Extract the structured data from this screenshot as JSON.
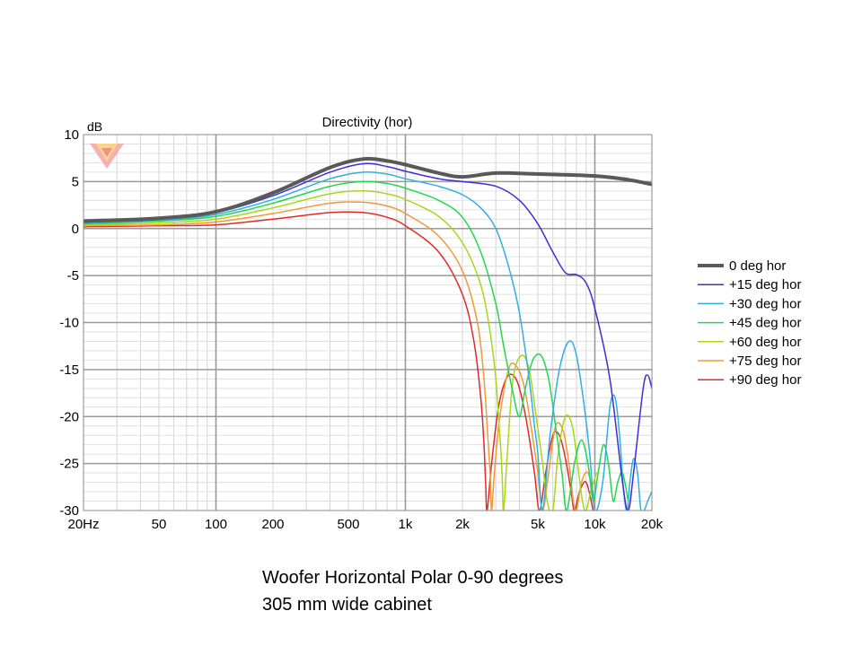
{
  "caption": {
    "line1": "Woofer  Horizontal Polar 0-90 degrees",
    "line2": "305 mm wide cabinet"
  },
  "chart_data": {
    "type": "line",
    "title": "Directivity (hor)",
    "ylabel": "dB",
    "xlabel": "",
    "x_scale": "log",
    "xlim": [
      20,
      20000
    ],
    "ylim": [
      -30,
      10
    ],
    "grid": true,
    "legend_position": "right",
    "x_ticks": [
      {
        "value": 20,
        "label": "20Hz"
      },
      {
        "value": 50,
        "label": "50"
      },
      {
        "value": 100,
        "label": "100"
      },
      {
        "value": 200,
        "label": "200"
      },
      {
        "value": 500,
        "label": "500"
      },
      {
        "value": 1000,
        "label": "1k"
      },
      {
        "value": 2000,
        "label": "2k"
      },
      {
        "value": 5000,
        "label": "5k"
      },
      {
        "value": 10000,
        "label": "10k"
      },
      {
        "value": 20000,
        "label": "20k"
      }
    ],
    "y_ticks": [
      10,
      5,
      0,
      -5,
      -10,
      -15,
      -20,
      -25,
      -30
    ],
    "series": [
      {
        "name": "0 deg hor",
        "color": "#595959",
        "width": 4,
        "points": [
          [
            20,
            0.8
          ],
          [
            50,
            1.1
          ],
          [
            100,
            1.8
          ],
          [
            200,
            3.8
          ],
          [
            400,
            6.5
          ],
          [
            600,
            7.4
          ],
          [
            800,
            7.2
          ],
          [
            1000,
            6.8
          ],
          [
            1500,
            5.9
          ],
          [
            2000,
            5.5
          ],
          [
            3000,
            5.9
          ],
          [
            5000,
            5.8
          ],
          [
            10000,
            5.6
          ],
          [
            15000,
            5.2
          ],
          [
            20000,
            4.7
          ]
        ]
      },
      {
        "name": "+15 deg hor",
        "color": "#3a2fd8",
        "width": 1.5,
        "points": [
          [
            20,
            0.7
          ],
          [
            50,
            1.0
          ],
          [
            100,
            1.7
          ],
          [
            200,
            3.5
          ],
          [
            400,
            6.0
          ],
          [
            600,
            6.9
          ],
          [
            800,
            6.6
          ],
          [
            1000,
            6.1
          ],
          [
            1500,
            5.3
          ],
          [
            2000,
            5.0
          ],
          [
            3000,
            4.5
          ],
          [
            4000,
            3.0
          ],
          [
            5000,
            0.5
          ],
          [
            6000,
            -2.5
          ],
          [
            7000,
            -4.7
          ],
          [
            8000,
            -4.9
          ],
          [
            9000,
            -5.8
          ],
          [
            10000,
            -8.5
          ],
          [
            12000,
            -16
          ],
          [
            14000,
            -27
          ],
          [
            15000,
            -30
          ],
          [
            16000,
            -26
          ],
          [
            18000,
            -17
          ],
          [
            19000,
            -15.6
          ],
          [
            20000,
            -17
          ]
        ]
      },
      {
        "name": "+30 deg hor",
        "color": "#2fb0e0",
        "width": 1.5,
        "points": [
          [
            20,
            0.6
          ],
          [
            50,
            0.9
          ],
          [
            100,
            1.5
          ],
          [
            200,
            3.1
          ],
          [
            400,
            5.3
          ],
          [
            600,
            6.0
          ],
          [
            800,
            5.8
          ],
          [
            1000,
            5.3
          ],
          [
            1500,
            4.5
          ],
          [
            2000,
            3.6
          ],
          [
            2500,
            2.2
          ],
          [
            3000,
            0
          ],
          [
            3500,
            -4
          ],
          [
            4000,
            -9
          ],
          [
            4500,
            -16
          ],
          [
            4800,
            -21
          ],
          [
            5000,
            -24
          ],
          [
            5300,
            -30
          ],
          [
            5800,
            -22
          ],
          [
            6500,
            -15
          ],
          [
            7300,
            -12
          ],
          [
            8000,
            -13.5
          ],
          [
            8800,
            -19
          ],
          [
            9400,
            -24
          ],
          [
            10000,
            -30
          ],
          [
            11000,
            -27
          ],
          [
            12000,
            -19
          ],
          [
            12800,
            -18
          ],
          [
            13500,
            -22
          ],
          [
            14200,
            -28
          ],
          [
            14800,
            -30
          ],
          [
            15300,
            -27
          ],
          [
            16000,
            -24.5
          ],
          [
            16800,
            -26
          ],
          [
            17500,
            -30
          ],
          [
            18200,
            -30
          ],
          [
            19000,
            -29
          ],
          [
            20000,
            -28
          ]
        ]
      },
      {
        "name": "+45 deg hor",
        "color": "#22d652",
        "width": 1.5,
        "points": [
          [
            20,
            0.5
          ],
          [
            50,
            0.8
          ],
          [
            100,
            1.3
          ],
          [
            200,
            2.7
          ],
          [
            400,
            4.5
          ],
          [
            600,
            5.0
          ],
          [
            800,
            4.8
          ],
          [
            1000,
            4.3
          ],
          [
            1500,
            3.0
          ],
          [
            2000,
            1.2
          ],
          [
            2500,
            -2.5
          ],
          [
            3000,
            -8
          ],
          [
            3300,
            -12.5
          ],
          [
            3700,
            -17.5
          ],
          [
            4000,
            -20
          ],
          [
            4300,
            -17
          ],
          [
            4700,
            -14
          ],
          [
            5200,
            -13.5
          ],
          [
            5700,
            -16
          ],
          [
            6200,
            -21
          ],
          [
            6700,
            -26
          ],
          [
            7100,
            -30
          ],
          [
            7800,
            -25
          ],
          [
            8500,
            -22.5
          ],
          [
            9200,
            -25
          ],
          [
            9800,
            -29
          ],
          [
            10400,
            -26
          ],
          [
            11100,
            -23
          ],
          [
            11800,
            -25
          ],
          [
            12500,
            -29
          ],
          [
            13200,
            -27
          ],
          [
            14000,
            -26
          ],
          [
            15000,
            -29
          ]
        ]
      },
      {
        "name": "+60 deg hor",
        "color": "#a8d816",
        "width": 1.5,
        "points": [
          [
            20,
            0.4
          ],
          [
            50,
            0.6
          ],
          [
            100,
            1.0
          ],
          [
            200,
            2.2
          ],
          [
            400,
            3.7
          ],
          [
            600,
            4.0
          ],
          [
            800,
            3.7
          ],
          [
            1000,
            3.1
          ],
          [
            1500,
            1.3
          ],
          [
            2000,
            -1.5
          ],
          [
            2500,
            -6
          ],
          [
            2800,
            -11
          ],
          [
            3000,
            -16
          ],
          [
            3100,
            -20
          ],
          [
            3200,
            -24
          ],
          [
            3250,
            -27
          ],
          [
            3300,
            -30
          ],
          [
            3450,
            -24
          ],
          [
            3700,
            -16
          ],
          [
            4100,
            -13.5
          ],
          [
            4500,
            -15
          ],
          [
            4900,
            -20
          ],
          [
            5300,
            -25
          ],
          [
            5600,
            -29
          ],
          [
            6000,
            -30
          ],
          [
            6400,
            -24
          ],
          [
            7000,
            -20
          ],
          [
            7600,
            -21
          ],
          [
            8100,
            -25
          ],
          [
            8600,
            -29
          ],
          [
            9000,
            -30
          ],
          [
            9500,
            -28
          ],
          [
            10200,
            -26
          ]
        ]
      },
      {
        "name": "+75 deg hor",
        "color": "#f09a38",
        "width": 1.5,
        "points": [
          [
            20,
            0.3
          ],
          [
            50,
            0.4
          ],
          [
            100,
            0.7
          ],
          [
            200,
            1.6
          ],
          [
            400,
            2.7
          ],
          [
            600,
            2.8
          ],
          [
            800,
            2.4
          ],
          [
            1000,
            1.6
          ],
          [
            1500,
            -0.8
          ],
          [
            2000,
            -4.5
          ],
          [
            2400,
            -10
          ],
          [
            2600,
            -16
          ],
          [
            2700,
            -21
          ],
          [
            2800,
            -26
          ],
          [
            2850,
            -30
          ],
          [
            2950,
            -26
          ],
          [
            3150,
            -20
          ],
          [
            3500,
            -15
          ],
          [
            3800,
            -14.5
          ],
          [
            4200,
            -16.5
          ],
          [
            4600,
            -21
          ],
          [
            5000,
            -26
          ],
          [
            5300,
            -30
          ],
          [
            5700,
            -26
          ],
          [
            6200,
            -21
          ],
          [
            6800,
            -21.5
          ],
          [
            7300,
            -25
          ],
          [
            7700,
            -29
          ],
          [
            8000,
            -30
          ],
          [
            8500,
            -27
          ],
          [
            9200,
            -26
          ],
          [
            10000,
            -29
          ]
        ]
      },
      {
        "name": "+90 deg hor",
        "color": "#e02a2a",
        "width": 1.5,
        "points": [
          [
            20,
            0.2
          ],
          [
            50,
            0.3
          ],
          [
            100,
            0.4
          ],
          [
            200,
            1.0
          ],
          [
            400,
            1.7
          ],
          [
            600,
            1.7
          ],
          [
            800,
            1.2
          ],
          [
            1000,
            0.3
          ],
          [
            1500,
            -2.5
          ],
          [
            2000,
            -7
          ],
          [
            2300,
            -12
          ],
          [
            2500,
            -18
          ],
          [
            2600,
            -23
          ],
          [
            2650,
            -27
          ],
          [
            2700,
            -30
          ],
          [
            2850,
            -25
          ],
          [
            3100,
            -19
          ],
          [
            3400,
            -16
          ],
          [
            3700,
            -15.6
          ],
          [
            4000,
            -17
          ],
          [
            4400,
            -21
          ],
          [
            4800,
            -26
          ],
          [
            5100,
            -30
          ],
          [
            5500,
            -26
          ],
          [
            6000,
            -22
          ],
          [
            6500,
            -22
          ],
          [
            7000,
            -24.5
          ],
          [
            7500,
            -28
          ],
          [
            7800,
            -30
          ],
          [
            8300,
            -28
          ],
          [
            9000,
            -27
          ],
          [
            9800,
            -30
          ]
        ]
      }
    ]
  }
}
